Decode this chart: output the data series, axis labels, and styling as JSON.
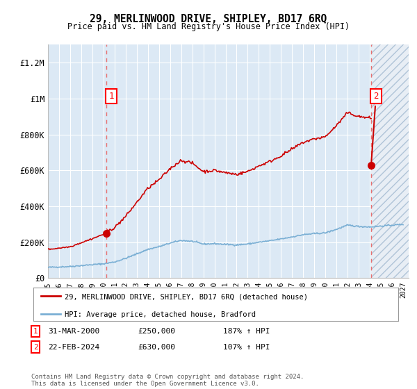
{
  "title": "29, MERLINWOOD DRIVE, SHIPLEY, BD17 6RQ",
  "subtitle": "Price paid vs. HM Land Registry's House Price Index (HPI)",
  "xlim_start": 1995.0,
  "xlim_end": 2027.5,
  "ylim": [
    0,
    1300000
  ],
  "yticks": [
    0,
    200000,
    400000,
    600000,
    800000,
    1000000,
    1200000
  ],
  "ytick_labels": [
    "£0",
    "£200K",
    "£400K",
    "£600K",
    "£800K",
    "£1M",
    "£1.2M"
  ],
  "plot_bg": "#dce9f5",
  "grid_color": "#ffffff",
  "transaction1_date": 2000.25,
  "transaction1_price": 250000,
  "transaction2_date": 2024.12,
  "transaction2_price": 630000,
  "legend_line1": "29, MERLINWOOD DRIVE, SHIPLEY, BD17 6RQ (detached house)",
  "legend_line2": "HPI: Average price, detached house, Bradford",
  "table_row1": [
    "1",
    "31-MAR-2000",
    "£250,000",
    "187% ↑ HPI"
  ],
  "table_row2": [
    "2",
    "22-FEB-2024",
    "£630,000",
    "107% ↑ HPI"
  ],
  "footer": "Contains HM Land Registry data © Crown copyright and database right 2024.\nThis data is licensed under the Open Government Licence v3.0.",
  "line_color_red": "#cc0000",
  "line_color_blue": "#7aafd4",
  "dashed_line_color": "#e87070",
  "future_hatch_start": 2024.12,
  "hatch_bg": "#dce9f5",
  "hatch_fg": "#b8ccdd"
}
